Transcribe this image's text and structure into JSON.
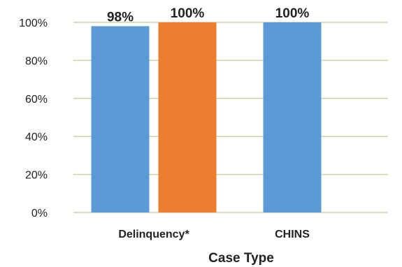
{
  "chart_data": {
    "type": "bar",
    "title": "",
    "xlabel": "Case Type",
    "ylabel": "",
    "ylim": [
      0,
      100
    ],
    "yticks": [
      "0%",
      "20%",
      "40%",
      "60%",
      "80%",
      "100%"
    ],
    "ytick_values": [
      0,
      20,
      40,
      60,
      80,
      100
    ],
    "grid": true,
    "legend": "none",
    "categories": [
      "Delinquency*",
      "CHINS"
    ],
    "series": [
      {
        "color": "#5b9bd5",
        "values": [
          98,
          100
        ],
        "labels": [
          "98%",
          "100%"
        ]
      },
      {
        "color": "#ed7d31",
        "values": [
          100,
          null
        ],
        "labels": [
          "100%",
          ""
        ]
      }
    ]
  }
}
